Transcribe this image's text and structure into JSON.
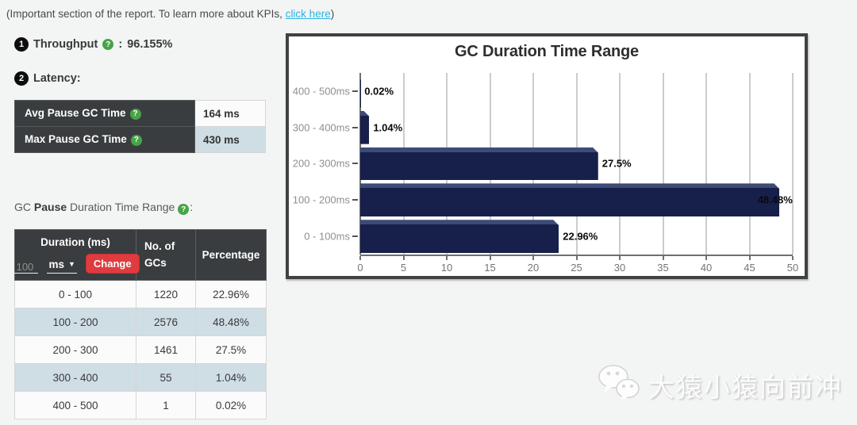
{
  "note": {
    "prefix": "(Important section of the report. To learn more about KPIs, ",
    "link_text": "click here",
    "suffix": ")"
  },
  "kpis": {
    "throughput": {
      "number": "1",
      "label": "Throughput",
      "separator": ":",
      "value": "96.155%"
    },
    "latency": {
      "number": "2",
      "label": "Latency:"
    }
  },
  "latency_table": {
    "rows": [
      {
        "label": "Avg Pause GC Time",
        "value": "164 ms"
      },
      {
        "label": "Max Pause GC Time",
        "value": "430 ms"
      }
    ]
  },
  "duration_heading": {
    "prefix": "GC ",
    "bold": "Pause",
    "suffix": " Duration Time Range",
    "colon": ":"
  },
  "duration_table": {
    "header": {
      "col1": "Duration (ms)",
      "col2": "No. of GCs",
      "col3": "Percentage"
    },
    "controls": {
      "input_placeholder": "100",
      "unit": "ms",
      "change_label": "Change"
    },
    "rows": [
      {
        "duration": "0 - 100",
        "gcs": "1220",
        "pct": "22.96%"
      },
      {
        "duration": "100 - 200",
        "gcs": "2576",
        "pct": "48.48%"
      },
      {
        "duration": "200 - 300",
        "gcs": "1461",
        "pct": "27.5%"
      },
      {
        "duration": "300 - 400",
        "gcs": "55",
        "pct": "1.04%"
      },
      {
        "duration": "400 - 500",
        "gcs": "1",
        "pct": "0.02%"
      }
    ]
  },
  "chart_data": {
    "type": "bar",
    "orientation": "horizontal",
    "title": "GC Duration Time Range",
    "categories": [
      "400 - 500ms",
      "300 - 400ms",
      "200 - 300ms",
      "100 - 200ms",
      "0 - 100ms"
    ],
    "values": [
      0.02,
      1.04,
      27.5,
      48.48,
      22.96
    ],
    "value_labels": [
      "0.02%",
      "1.04%",
      "27.5%",
      "48.48%",
      "22.96%"
    ],
    "xlabel": "",
    "ylabel": "",
    "xlim": [
      0,
      50
    ],
    "xticks": [
      0,
      5,
      10,
      15,
      20,
      25,
      30,
      35,
      40,
      45,
      50
    ],
    "grid": true,
    "legend": false,
    "bar_color": "#16204a",
    "bar_highlight_color": "#3d4b76"
  },
  "watermark": {
    "text": "大猿小猿向前冲"
  },
  "colors": {
    "page_bg": "#f3f4f4",
    "link": "#2bb3e6",
    "table_header_bg": "#3a3d3f",
    "row_alt_bg": "#cfdde4",
    "change_button_bg": "#e03b3f",
    "help_icon_bg": "#47a447",
    "badge_bg": "#0d0d0d",
    "chart_border": "#414141"
  }
}
